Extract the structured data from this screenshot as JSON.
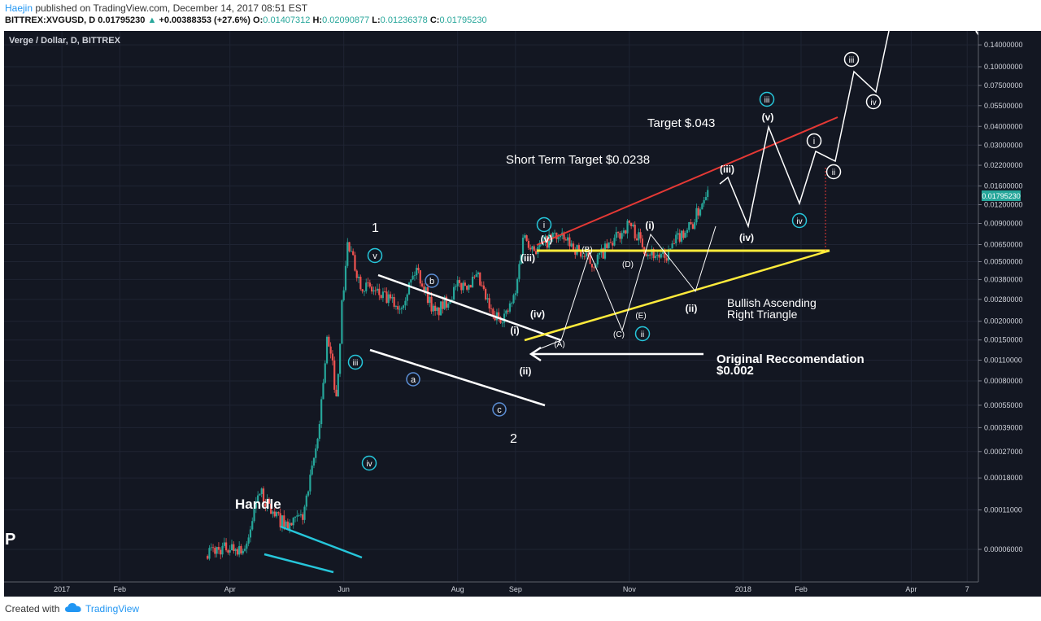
{
  "header": {
    "author": "Haejin",
    "published_text": "published on TradingView.com, December 14, 2017 08:51 EST",
    "symbol_line": "BITTREX:XVGUSD, D",
    "price": "0.01795230",
    "change_arrow": "▲",
    "change": "+0.00388353 (+27.6%)",
    "open_label": "O:",
    "open": "0.01407312",
    "high_label": "H:",
    "high": "0.02090877",
    "low_label": "L:",
    "low": "0.01236378",
    "close_label": "C:",
    "close": "0.01795230"
  },
  "footer": {
    "created_with": "Created with",
    "brand": "TradingView"
  },
  "colors": {
    "background": "#131722",
    "up_candle": "#26a69a",
    "down_candle": "#ef5350",
    "trend_white": "#ffffff",
    "trend_cyan": "#26c6da",
    "trend_red": "#e53935",
    "trend_yellow": "#ffeb3b",
    "price_tag": "#26a69a"
  },
  "chart_data": {
    "type": "candlestick",
    "title": "Verge / Dollar, D, BITTREX",
    "y_scale": "log",
    "ylim": [
      4.5e-05,
      0.165
    ],
    "y_ticks": [
      "0.14000000",
      "0.10000000",
      "0.07500000",
      "0.05500000",
      "0.04000000",
      "0.03000000",
      "0.02200000",
      "0.01600000",
      "0.01200000",
      "0.00900000",
      "0.00650000",
      "0.00500000",
      "0.00380000",
      "0.00280000",
      "0.00200000",
      "0.00150000",
      "0.00110000",
      "0.00080000",
      "0.00055000",
      "0.00039000",
      "0.00027000",
      "0.00018000",
      "0.00011000",
      "0.00006000"
    ],
    "x_ticks": [
      "2017",
      "Feb",
      "Apr",
      "Jun",
      "Aug",
      "Sep",
      "Nov",
      "2018",
      "Feb",
      "Apr",
      "7"
    ],
    "last_price_tag": "0.01795230",
    "corner_label": "P",
    "series": [
      {
        "date": "2017-03-20",
        "close": 5.8e-05
      },
      {
        "date": "2017-04-01",
        "close": 6.2e-05
      },
      {
        "date": "2017-04-10",
        "close": 6e-05
      },
      {
        "date": "2017-04-16",
        "close": 0.00015
      },
      {
        "date": "2017-04-25",
        "close": 0.0001
      },
      {
        "date": "2017-05-03",
        "close": 8.5e-05
      },
      {
        "date": "2017-05-10",
        "close": 0.0001
      },
      {
        "date": "2017-05-14",
        "close": 0.00017
      },
      {
        "date": "2017-05-18",
        "close": 0.00033
      },
      {
        "date": "2017-05-21",
        "close": 0.0008
      },
      {
        "date": "2017-05-23",
        "close": 0.0015
      },
      {
        "date": "2017-05-26",
        "close": 0.001
      },
      {
        "date": "2017-05-28",
        "close": 0.0006
      },
      {
        "date": "2017-05-31",
        "close": 0.0025
      },
      {
        "date": "2017-06-03",
        "close": 0.0065
      },
      {
        "date": "2017-06-10",
        "close": 0.0036
      },
      {
        "date": "2017-06-20",
        "close": 0.003
      },
      {
        "date": "2017-07-01",
        "close": 0.0025
      },
      {
        "date": "2017-07-10",
        "close": 0.0045
      },
      {
        "date": "2017-07-20",
        "close": 0.0022
      },
      {
        "date": "2017-08-01",
        "close": 0.0034
      },
      {
        "date": "2017-08-12",
        "close": 0.0038
      },
      {
        "date": "2017-08-20",
        "close": 0.0021
      },
      {
        "date": "2017-08-27",
        "close": 0.0022
      },
      {
        "date": "2017-09-01",
        "close": 0.003
      },
      {
        "date": "2017-09-05",
        "close": 0.0075
      },
      {
        "date": "2017-09-12",
        "close": 0.006
      },
      {
        "date": "2017-09-22",
        "close": 0.0075
      },
      {
        "date": "2017-10-01",
        "close": 0.0065
      },
      {
        "date": "2017-10-12",
        "close": 0.0048
      },
      {
        "date": "2017-10-22",
        "close": 0.0065
      },
      {
        "date": "2017-11-01",
        "close": 0.009
      },
      {
        "date": "2017-11-10",
        "close": 0.006
      },
      {
        "date": "2017-11-20",
        "close": 0.0052
      },
      {
        "date": "2017-11-28",
        "close": 0.0075
      },
      {
        "date": "2017-12-05",
        "close": 0.009
      },
      {
        "date": "2017-12-10",
        "close": 0.0125
      },
      {
        "date": "2017-12-14",
        "close": 0.01795
      }
    ],
    "annotations": [
      "Handle",
      "1",
      "2",
      "Short Term Target $0.0238",
      "Target $.043",
      "Bullish Ascending",
      "Right Triangle",
      "Original Reccomendation",
      "$0.002",
      "v",
      "iii",
      "iv",
      "a",
      "b",
      "c",
      "i",
      "ii",
      "iii",
      "iv",
      "ii",
      "iv",
      "(iii)",
      "(v)",
      "(iv)",
      "(i)",
      "(ii)",
      "(i)",
      "(ii)",
      "(iii)",
      "(iv)",
      "(v)",
      "(B)",
      "(D)",
      "(A)",
      "(C)",
      "(E)",
      "i",
      "ii",
      "iii",
      "iv"
    ]
  }
}
